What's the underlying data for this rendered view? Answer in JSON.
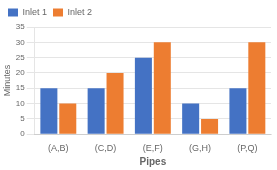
{
  "chart_data": {
    "type": "bar",
    "categories": [
      "(A,B)",
      "(C,D)",
      "(E,F)",
      "(G,H)",
      "(P,Q)"
    ],
    "series": [
      {
        "name": "Inlet 1",
        "color": "#4472C4",
        "values": [
          15,
          15,
          25,
          10,
          15
        ]
      },
      {
        "name": "Inlet 2",
        "color": "#ED7D31",
        "values": [
          10,
          20,
          30,
          5,
          30
        ]
      }
    ],
    "xlabel": "Pipes",
    "ylabel": "Minutes",
    "ylim": [
      0,
      35
    ],
    "yticks": [
      0,
      5,
      10,
      15,
      20,
      25,
      30,
      35
    ],
    "grid": true,
    "legend": "upper left"
  }
}
